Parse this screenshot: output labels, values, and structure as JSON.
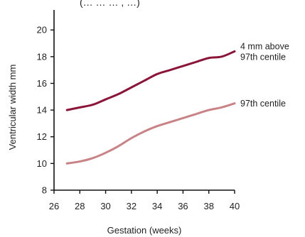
{
  "header": {
    "fragment": "(… … … , …)"
  },
  "chart_data": {
    "type": "line",
    "title": "",
    "xlabel": "Gestation (weeks)",
    "ylabel": "Ventricular width mm",
    "xlim": [
      26,
      40
    ],
    "ylim": [
      8,
      21.5
    ],
    "xticks": [
      26,
      28,
      30,
      32,
      34,
      36,
      38,
      40
    ],
    "yticks": [
      8,
      10,
      12,
      14,
      16,
      18,
      20
    ],
    "grid": false,
    "legend": "none",
    "series": [
      {
        "name": "4 mm above 97th centile",
        "label_lines": [
          "4 mm above",
          "97th centile"
        ],
        "color": "#8a1538",
        "x": [
          27,
          28,
          29,
          30,
          31,
          32,
          33,
          34,
          35,
          36,
          37,
          38,
          39,
          40
        ],
        "y": [
          14.0,
          14.2,
          14.4,
          14.8,
          15.2,
          15.7,
          16.2,
          16.7,
          17.0,
          17.3,
          17.6,
          17.9,
          18.0,
          18.4
        ]
      },
      {
        "name": "97th centile",
        "label_lines": [
          "97th centile"
        ],
        "color": "#c98386",
        "x": [
          27,
          28,
          29,
          30,
          31,
          32,
          33,
          34,
          35,
          36,
          37,
          38,
          39,
          40
        ],
        "y": [
          10.0,
          10.15,
          10.4,
          10.8,
          11.3,
          11.9,
          12.4,
          12.8,
          13.1,
          13.4,
          13.7,
          14.0,
          14.2,
          14.5
        ]
      }
    ]
  }
}
